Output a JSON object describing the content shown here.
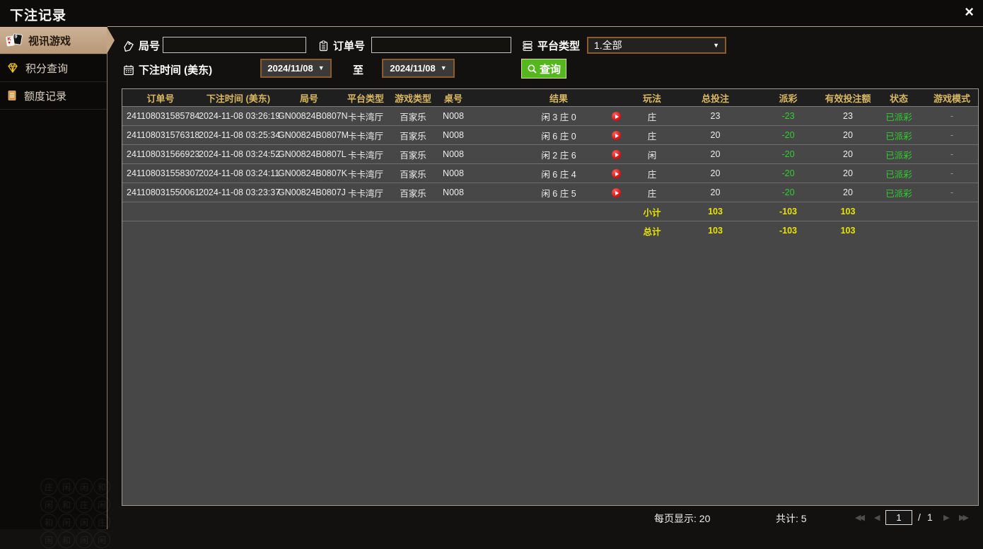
{
  "window": {
    "title": "下注记录",
    "close_glyph": "×"
  },
  "sidebar": {
    "items": [
      {
        "label": "视讯游戏"
      },
      {
        "label": "积分查询"
      },
      {
        "label": "额度记录"
      }
    ]
  },
  "filters": {
    "round_label": "局号",
    "round_value": "",
    "order_label": "订单号",
    "order_value": "",
    "platform_label": "平台类型",
    "platform_value": "1.全部",
    "time_label": "下注时间 (美东)",
    "date_from": "2024/11/08",
    "date_to": "2024/11/08",
    "to_label": "至",
    "search_label": "查询",
    "caret_down": "▼"
  },
  "table": {
    "headers": [
      "订单号",
      "下注时间 (美东)",
      "局号",
      "平台类型",
      "游戏类型",
      "桌号",
      "",
      "结果",
      "",
      "玩法",
      "总投注",
      "派彩",
      "有效投注额",
      "状态",
      "游戏模式"
    ],
    "rows": [
      {
        "order": "241108031585784",
        "time": "2024-11-08 03:26:19",
        "round": "GN00824B0807N",
        "platform": "卡卡湾厅",
        "game": "百家乐",
        "table_no": "N008",
        "result": "闲 3 庄 0",
        "bet_type": "庄",
        "total_bet": "23",
        "payout": "-23",
        "valid_bet": "23",
        "status": "已派彩",
        "mode": "-"
      },
      {
        "order": "241108031576318",
        "time": "2024-11-08 03:25:34",
        "round": "GN00824B0807M",
        "platform": "卡卡湾厅",
        "game": "百家乐",
        "table_no": "N008",
        "result": "闲 6 庄 0",
        "bet_type": "庄",
        "total_bet": "20",
        "payout": "-20",
        "valid_bet": "20",
        "status": "已派彩",
        "mode": "-"
      },
      {
        "order": "241108031566923",
        "time": "2024-11-08 03:24:52",
        "round": "GN00824B0807L",
        "platform": "卡卡湾厅",
        "game": "百家乐",
        "table_no": "N008",
        "result": "闲 2 庄 6",
        "bet_type": "闲",
        "total_bet": "20",
        "payout": "-20",
        "valid_bet": "20",
        "status": "已派彩",
        "mode": "-"
      },
      {
        "order": "241108031558307",
        "time": "2024-11-08 03:24:11",
        "round": "GN00824B0807K",
        "platform": "卡卡湾厅",
        "game": "百家乐",
        "table_no": "N008",
        "result": "闲 6 庄 4",
        "bet_type": "庄",
        "total_bet": "20",
        "payout": "-20",
        "valid_bet": "20",
        "status": "已派彩",
        "mode": "-"
      },
      {
        "order": "241108031550061",
        "time": "2024-11-08 03:23:37",
        "round": "GN00824B0807J",
        "platform": "卡卡湾厅",
        "game": "百家乐",
        "table_no": "N008",
        "result": "闲 6 庄 5",
        "bet_type": "庄",
        "total_bet": "20",
        "payout": "-20",
        "valid_bet": "20",
        "status": "已派彩",
        "mode": "-"
      }
    ],
    "subtotal": {
      "label": "小计",
      "total_bet": "103",
      "payout": "-103",
      "valid_bet": "103"
    },
    "total": {
      "label": "总计",
      "total_bet": "103",
      "payout": "-103",
      "valid_bet": "103"
    }
  },
  "pagination": {
    "per_page_label": "每页显示: 20",
    "total_label": "共计: 5",
    "page": "1",
    "separator": "/",
    "page_total": "1",
    "first_glyph": "◀◀",
    "prev_glyph": "◀",
    "next_glyph": "▶",
    "last_glyph": "▶▶"
  },
  "decor": {
    "chars": "庄闲闲和闲和庄闲和闲闲庄闲和闲闲"
  }
}
